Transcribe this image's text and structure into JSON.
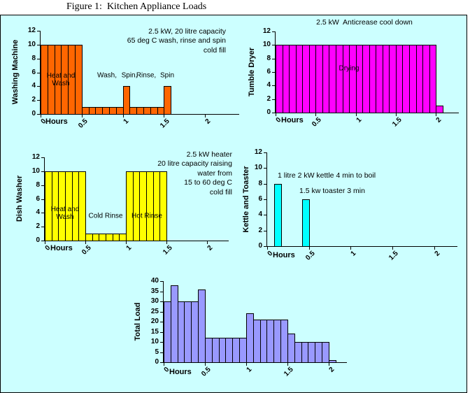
{
  "page": {
    "title": "Figure 1:  Kitchen Appliance Loads"
  },
  "colors": {
    "figure_background": "#CCFFFF",
    "border": "#000000",
    "washing_machine": "#FF6600",
    "tumble_dryer": "#FF00FF",
    "dish_washer": "#FFFF00",
    "kettle_toaster": "#00FFFF",
    "total_load": "#9999FF"
  },
  "chart_data": [
    {
      "id": "washing-machine",
      "type": "bar",
      "ylabel": "Washing Machine",
      "xlabel": "Hours",
      "color": "#FF6600",
      "ymax": 12,
      "yticks": [
        0,
        2,
        4,
        6,
        8,
        10,
        12
      ],
      "xticks": [
        {
          "h": 0,
          "label": "0"
        },
        {
          "h": 0.5,
          "label": "0.5"
        },
        {
          "h": 1,
          "label": "1"
        },
        {
          "h": 1.5,
          "label": "1.5"
        },
        {
          "h": 2,
          "label": "2"
        }
      ],
      "hours_per_cell": 0.0833333,
      "values": [
        10,
        10,
        10,
        10,
        10,
        10,
        1,
        1,
        1,
        1,
        1,
        1,
        4,
        1,
        1,
        1,
        1,
        1,
        4
      ],
      "bar_labels": [
        {
          "lines": [
            "Heat and",
            "Wash"
          ],
          "h": 0.25,
          "v": 4.9
        },
        {
          "lines": [
            "Wash,"
          ],
          "h": 0.81,
          "v": 5.5
        },
        {
          "lines": [
            "Spin,"
          ],
          "h": 1.08,
          "v": 5.5
        },
        {
          "lines": [
            "Rinse,"
          ],
          "h": 1.28,
          "v": 5.5
        },
        {
          "lines": [
            "Spin"
          ],
          "h": 1.54,
          "v": 5.5
        }
      ],
      "annotations": [
        {
          "lines": [
            "2.5 kW, 20 litre capacity",
            "65 deg C wash, rinse and spin",
            "cold fill"
          ]
        }
      ]
    },
    {
      "id": "tumble-dryer",
      "type": "bar",
      "ylabel": "Tumble Dryer",
      "xlabel": "Hours",
      "color": "#FF00FF",
      "ymax": 12,
      "yticks": [
        0,
        2,
        4,
        6,
        8,
        10,
        12
      ],
      "xticks": [
        {
          "h": 0,
          "label": "0"
        },
        {
          "h": 0.5,
          "label": "0.5"
        },
        {
          "h": 1,
          "label": "1"
        },
        {
          "h": 1.5,
          "label": "1.5"
        },
        {
          "h": 2,
          "label": "2"
        }
      ],
      "hours_per_cell": 0.0833333,
      "values": [
        10,
        10,
        10,
        10,
        10,
        10,
        10,
        10,
        10,
        10,
        10,
        10,
        10,
        10,
        10,
        10,
        10,
        10,
        10,
        10,
        10,
        10,
        10,
        10,
        1
      ],
      "bar_labels": [
        {
          "lines": [
            "Drying"
          ],
          "h": 0.92,
          "v": 6.5
        }
      ],
      "annotations": [
        {
          "lines": [
            "2.5 kW  Anticrease cool down"
          ]
        }
      ]
    },
    {
      "id": "dish-washer",
      "type": "bar",
      "ylabel": "Dish Washer",
      "xlabel": "Hours",
      "color": "#FFFF00",
      "ymax": 12,
      "yticks": [
        0,
        2,
        4,
        6,
        8,
        10,
        12
      ],
      "xticks": [
        {
          "h": 0,
          "label": "0"
        },
        {
          "h": 0.5,
          "label": "0.5"
        },
        {
          "h": 1,
          "label": "1"
        },
        {
          "h": 1.5,
          "label": "1.5"
        },
        {
          "h": 2,
          "label": "2"
        }
      ],
      "hours_per_cell": 0.0833333,
      "values": [
        10,
        10,
        10,
        10,
        10,
        10,
        1,
        1,
        1,
        1,
        1,
        1,
        10,
        10,
        10,
        10,
        10,
        10
      ],
      "bar_labels": [
        {
          "lines": [
            "Heat and",
            "Wash"
          ],
          "h": 0.25,
          "v": 3.9
        },
        {
          "lines": [
            "Cold Rinse"
          ],
          "h": 0.75,
          "v": 3.5
        },
        {
          "lines": [
            "Hot Rinse"
          ],
          "h": 1.26,
          "v": 3.5
        }
      ],
      "annotations": [
        {
          "lines": [
            "2.5 kW heater",
            "20 litre capacity raising",
            "water from",
            "15 to 60 deg C",
            "cold fill"
          ]
        }
      ]
    },
    {
      "id": "kettle-toaster",
      "type": "bar",
      "ylabel": "Kettle and Toaster",
      "xlabel": "Hours",
      "color": "#00FFFF",
      "ymax": 12,
      "yticks": [
        0,
        2,
        4,
        6,
        8,
        10,
        12
      ],
      "xticks": [
        {
          "h": 0,
          "label": "0"
        },
        {
          "h": 0.5,
          "label": "0.5"
        },
        {
          "h": 1,
          "label": "1"
        },
        {
          "h": 1.5,
          "label": "1.5"
        },
        {
          "h": 2,
          "label": "2"
        }
      ],
      "hours_per_cell": 0.0833333,
      "values": [
        0,
        8,
        0,
        0,
        0,
        6
      ],
      "bar_labels": [],
      "annotations": [
        {
          "lines": [
            "1 litre 2 kW kettle 4 min to boil"
          ]
        },
        {
          "lines": [
            "1.5 kw toaster 3 min"
          ]
        }
      ]
    },
    {
      "id": "total-load",
      "type": "bar",
      "ylabel": "Total Load",
      "xlabel": "Hours",
      "color": "#9999FF",
      "ymax": 40,
      "yticks": [
        0,
        5,
        10,
        15,
        20,
        25,
        30,
        35,
        40
      ],
      "xticks": [
        {
          "h": 0,
          "label": "0"
        },
        {
          "h": 0.5,
          "label": "0.5"
        },
        {
          "h": 1,
          "label": "1"
        },
        {
          "h": 1.5,
          "label": "1.5"
        },
        {
          "h": 2,
          "label": "2"
        }
      ],
      "hours_per_cell": 0.0833333,
      "values": [
        30,
        38,
        30,
        30,
        30,
        36,
        12,
        12,
        12,
        12,
        12,
        12,
        24,
        21,
        21,
        21,
        21,
        21,
        14,
        10,
        10,
        10,
        10,
        10,
        1
      ],
      "bar_labels": [],
      "annotations": []
    }
  ]
}
